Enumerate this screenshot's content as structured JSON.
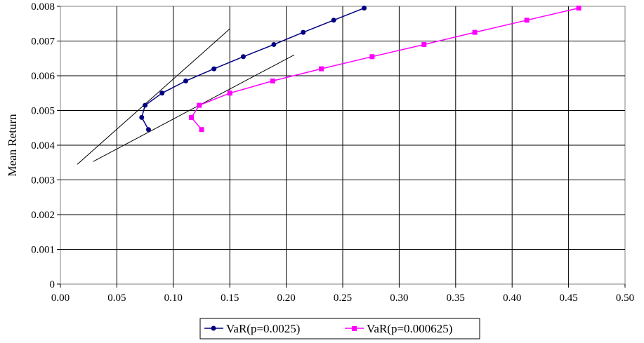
{
  "chart_data": {
    "type": "line",
    "title": "",
    "xlabel": "",
    "ylabel": "Mean Return",
    "xlim": [
      0,
      0.5
    ],
    "ylim": [
      0,
      0.008
    ],
    "x_ticks": [
      "0.00",
      "0.05",
      "0.10",
      "0.15",
      "0.20",
      "0.25",
      "0.30",
      "0.35",
      "0.40",
      "0.45",
      "0.50"
    ],
    "y_ticks": [
      "0",
      "0.001",
      "0.002",
      "0.003",
      "0.004",
      "0.005",
      "0.006",
      "0.007",
      "0.008"
    ],
    "grid": true,
    "legend_position": "bottom",
    "series": [
      {
        "name": "VaR(p=0.0025)",
        "color": "#000080",
        "marker": "circle",
        "points": [
          [
            0.078,
            0.00445
          ],
          [
            0.072,
            0.0048
          ],
          [
            0.075,
            0.00515
          ],
          [
            0.09,
            0.0055
          ],
          [
            0.111,
            0.00585
          ],
          [
            0.136,
            0.0062
          ],
          [
            0.162,
            0.00655
          ],
          [
            0.189,
            0.0069
          ],
          [
            0.215,
            0.00725
          ],
          [
            0.242,
            0.0076
          ],
          [
            0.269,
            0.00795
          ]
        ]
      },
      {
        "name": "VaR(p=0.000625)",
        "color": "#ff00ff",
        "marker": "square",
        "points": [
          [
            0.125,
            0.00445
          ],
          [
            0.116,
            0.0048
          ],
          [
            0.123,
            0.00515
          ],
          [
            0.15,
            0.0055
          ],
          [
            0.188,
            0.00585
          ],
          [
            0.231,
            0.0062
          ],
          [
            0.276,
            0.00655
          ],
          [
            0.322,
            0.0069
          ],
          [
            0.367,
            0.00725
          ],
          [
            0.413,
            0.0076
          ],
          [
            0.459,
            0.00795
          ]
        ]
      }
    ],
    "tangent_lines": [
      {
        "color": "#000000",
        "from": [
          0.015,
          0.00345
        ],
        "to": [
          0.15,
          0.00735
        ]
      },
      {
        "color": "#000000",
        "from": [
          0.029,
          0.00353
        ],
        "to": [
          0.207,
          0.0066
        ]
      }
    ]
  }
}
